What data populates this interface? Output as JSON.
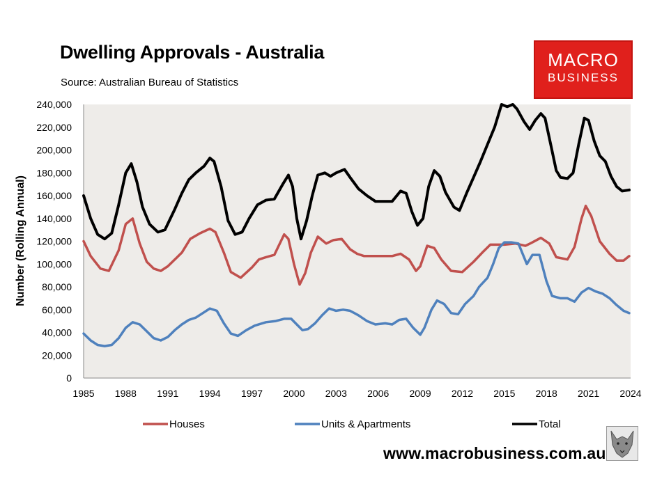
{
  "title": "Dwelling Approvals - Australia",
  "source": "Source: Australian Bureau of Statistics",
  "logo": {
    "line1": "MACRO",
    "line2": "BUSINESS",
    "bg_color": "#e0201c"
  },
  "footer_url": "www.macrobusiness.com.au",
  "chart_data": {
    "type": "line",
    "title": "Dwelling Approvals - Australia",
    "ylabel": "Number (Rolling Annual)",
    "xlabel": "",
    "xlim": [
      1985,
      2024
    ],
    "ylim": [
      0,
      240000
    ],
    "x_ticks": [
      1985,
      1988,
      1991,
      1994,
      1997,
      2000,
      2003,
      2006,
      2009,
      2012,
      2015,
      2018,
      2021,
      2024
    ],
    "x_tick_labels": [
      "1985",
      "1988",
      "1991",
      "1994",
      "1997",
      "2000",
      "2003",
      "2006",
      "2009",
      "2012",
      "2015",
      "2018",
      "2021",
      "2024"
    ],
    "y_ticks": [
      0,
      20000,
      40000,
      60000,
      80000,
      100000,
      120000,
      140000,
      160000,
      180000,
      200000,
      220000,
      240000
    ],
    "y_tick_labels": [
      "0",
      "20,000",
      "40,000",
      "60,000",
      "80,000",
      "100,000",
      "120,000",
      "140,000",
      "160,000",
      "180,000",
      "200,000",
      "220,000",
      "240,000"
    ],
    "grid": false,
    "legend_position": "bottom",
    "series": [
      {
        "name": "Houses",
        "color": "#c0504d",
        "points": [
          [
            1985.0,
            120000
          ],
          [
            1985.5,
            107000
          ],
          [
            1986.2,
            96000
          ],
          [
            1986.8,
            94000
          ],
          [
            1987.5,
            112000
          ],
          [
            1988.0,
            135000
          ],
          [
            1988.5,
            140000
          ],
          [
            1989.0,
            118000
          ],
          [
            1989.5,
            102000
          ],
          [
            1990.0,
            96000
          ],
          [
            1990.5,
            94000
          ],
          [
            1991.0,
            98000
          ],
          [
            1992.0,
            110000
          ],
          [
            1992.6,
            122000
          ],
          [
            1993.3,
            127000
          ],
          [
            1994.0,
            131000
          ],
          [
            1994.4,
            128000
          ],
          [
            1995.0,
            110000
          ],
          [
            1995.5,
            93000
          ],
          [
            1996.2,
            88000
          ],
          [
            1997.0,
            97000
          ],
          [
            1997.5,
            104000
          ],
          [
            1998.0,
            106000
          ],
          [
            1998.6,
            108000
          ],
          [
            1999.3,
            126000
          ],
          [
            1999.6,
            122000
          ],
          [
            2000.0,
            100000
          ],
          [
            2000.4,
            82000
          ],
          [
            2000.8,
            92000
          ],
          [
            2001.2,
            110000
          ],
          [
            2001.7,
            124000
          ],
          [
            2002.3,
            118000
          ],
          [
            2002.8,
            121000
          ],
          [
            2003.4,
            122000
          ],
          [
            2004.0,
            113000
          ],
          [
            2004.5,
            109000
          ],
          [
            2005.0,
            107000
          ],
          [
            2006.0,
            107000
          ],
          [
            2007.0,
            107000
          ],
          [
            2007.6,
            109000
          ],
          [
            2008.2,
            104000
          ],
          [
            2008.7,
            94000
          ],
          [
            2009.0,
            98000
          ],
          [
            2009.5,
            116000
          ],
          [
            2010.0,
            114000
          ],
          [
            2010.5,
            104000
          ],
          [
            2011.2,
            94000
          ],
          [
            2012.0,
            93000
          ],
          [
            2012.8,
            102000
          ],
          [
            2013.5,
            111000
          ],
          [
            2014.0,
            117000
          ],
          [
            2015.0,
            117000
          ],
          [
            2015.8,
            118000
          ],
          [
            2016.5,
            116000
          ],
          [
            2017.0,
            119000
          ],
          [
            2017.6,
            123000
          ],
          [
            2018.2,
            118000
          ],
          [
            2018.7,
            106000
          ],
          [
            2019.5,
            104000
          ],
          [
            2020.0,
            115000
          ],
          [
            2020.5,
            140000
          ],
          [
            2020.8,
            151000
          ],
          [
            2021.2,
            142000
          ],
          [
            2021.8,
            120000
          ],
          [
            2022.5,
            109000
          ],
          [
            2023.0,
            103000
          ],
          [
            2023.5,
            103000
          ],
          [
            2023.9,
            107000
          ]
        ]
      },
      {
        "name": "Units & Apartments",
        "color": "#4f81bd",
        "points": [
          [
            1985.0,
            39000
          ],
          [
            1985.5,
            33000
          ],
          [
            1986.0,
            29000
          ],
          [
            1986.5,
            28000
          ],
          [
            1987.0,
            29000
          ],
          [
            1987.5,
            35000
          ],
          [
            1988.0,
            44000
          ],
          [
            1988.5,
            49000
          ],
          [
            1989.0,
            47000
          ],
          [
            1989.5,
            41000
          ],
          [
            1990.0,
            35000
          ],
          [
            1990.5,
            33000
          ],
          [
            1991.0,
            36000
          ],
          [
            1991.5,
            42000
          ],
          [
            1992.0,
            47000
          ],
          [
            1992.5,
            51000
          ],
          [
            1993.0,
            53000
          ],
          [
            1993.5,
            57000
          ],
          [
            1994.0,
            61000
          ],
          [
            1994.5,
            59000
          ],
          [
            1995.0,
            48000
          ],
          [
            1995.5,
            39000
          ],
          [
            1996.0,
            37000
          ],
          [
            1996.6,
            42000
          ],
          [
            1997.2,
            46000
          ],
          [
            1998.0,
            49000
          ],
          [
            1998.7,
            50000
          ],
          [
            1999.3,
            52000
          ],
          [
            1999.8,
            52000
          ],
          [
            2000.2,
            47000
          ],
          [
            2000.6,
            42000
          ],
          [
            2001.0,
            43000
          ],
          [
            2001.5,
            48000
          ],
          [
            2002.0,
            55000
          ],
          [
            2002.5,
            61000
          ],
          [
            2003.0,
            59000
          ],
          [
            2003.5,
            60000
          ],
          [
            2004.0,
            59000
          ],
          [
            2004.6,
            55000
          ],
          [
            2005.2,
            50000
          ],
          [
            2005.8,
            47000
          ],
          [
            2006.5,
            48000
          ],
          [
            2007.0,
            47000
          ],
          [
            2007.5,
            51000
          ],
          [
            2008.0,
            52000
          ],
          [
            2008.5,
            44000
          ],
          [
            2009.0,
            38000
          ],
          [
            2009.3,
            44000
          ],
          [
            2009.8,
            60000
          ],
          [
            2010.2,
            68000
          ],
          [
            2010.7,
            65000
          ],
          [
            2011.2,
            57000
          ],
          [
            2011.7,
            56000
          ],
          [
            2012.2,
            65000
          ],
          [
            2012.8,
            72000
          ],
          [
            2013.2,
            80000
          ],
          [
            2013.8,
            88000
          ],
          [
            2014.2,
            100000
          ],
          [
            2014.6,
            114000
          ],
          [
            2015.0,
            119000
          ],
          [
            2015.5,
            119000
          ],
          [
            2016.0,
            118000
          ],
          [
            2016.6,
            100000
          ],
          [
            2017.0,
            108000
          ],
          [
            2017.5,
            108000
          ],
          [
            2018.0,
            85000
          ],
          [
            2018.4,
            72000
          ],
          [
            2019.0,
            70000
          ],
          [
            2019.5,
            70000
          ],
          [
            2020.0,
            67000
          ],
          [
            2020.5,
            75000
          ],
          [
            2021.0,
            79000
          ],
          [
            2021.5,
            76000
          ],
          [
            2022.0,
            74000
          ],
          [
            2022.5,
            70000
          ],
          [
            2023.0,
            64000
          ],
          [
            2023.5,
            59000
          ],
          [
            2023.9,
            57000
          ]
        ]
      },
      {
        "name": "Total",
        "color": "#000000",
        "points": [
          [
            1985.0,
            160000
          ],
          [
            1985.5,
            140000
          ],
          [
            1986.0,
            126000
          ],
          [
            1986.5,
            122000
          ],
          [
            1987.0,
            127000
          ],
          [
            1987.5,
            152000
          ],
          [
            1988.0,
            180000
          ],
          [
            1988.4,
            188000
          ],
          [
            1988.8,
            172000
          ],
          [
            1989.2,
            150000
          ],
          [
            1989.7,
            135000
          ],
          [
            1990.3,
            128000
          ],
          [
            1990.8,
            130000
          ],
          [
            1991.5,
            148000
          ],
          [
            1992.0,
            162000
          ],
          [
            1992.5,
            174000
          ],
          [
            1993.0,
            180000
          ],
          [
            1993.6,
            186000
          ],
          [
            1994.0,
            193000
          ],
          [
            1994.3,
            190000
          ],
          [
            1994.8,
            168000
          ],
          [
            1995.3,
            138000
          ],
          [
            1995.8,
            126000
          ],
          [
            1996.3,
            128000
          ],
          [
            1996.8,
            140000
          ],
          [
            1997.4,
            152000
          ],
          [
            1998.0,
            156000
          ],
          [
            1998.6,
            157000
          ],
          [
            1999.2,
            170000
          ],
          [
            1999.6,
            178000
          ],
          [
            1999.9,
            168000
          ],
          [
            2000.2,
            140000
          ],
          [
            2000.5,
            122000
          ],
          [
            2000.9,
            138000
          ],
          [
            2001.3,
            160000
          ],
          [
            2001.7,
            178000
          ],
          [
            2002.2,
            180000
          ],
          [
            2002.6,
            177000
          ],
          [
            2003.0,
            180000
          ],
          [
            2003.6,
            183000
          ],
          [
            2004.0,
            176000
          ],
          [
            2004.6,
            166000
          ],
          [
            2005.2,
            160000
          ],
          [
            2005.8,
            155000
          ],
          [
            2006.5,
            155000
          ],
          [
            2007.0,
            155000
          ],
          [
            2007.6,
            164000
          ],
          [
            2008.0,
            162000
          ],
          [
            2008.4,
            146000
          ],
          [
            2008.8,
            134000
          ],
          [
            2009.2,
            140000
          ],
          [
            2009.6,
            168000
          ],
          [
            2010.0,
            182000
          ],
          [
            2010.4,
            177000
          ],
          [
            2010.8,
            163000
          ],
          [
            2011.4,
            150000
          ],
          [
            2011.8,
            147000
          ],
          [
            2012.3,
            162000
          ],
          [
            2012.8,
            176000
          ],
          [
            2013.3,
            190000
          ],
          [
            2013.8,
            205000
          ],
          [
            2014.3,
            220000
          ],
          [
            2014.8,
            240000
          ],
          [
            2015.2,
            238000
          ],
          [
            2015.6,
            240000
          ],
          [
            2015.9,
            236000
          ],
          [
            2016.4,
            225000
          ],
          [
            2016.8,
            218000
          ],
          [
            2017.2,
            226000
          ],
          [
            2017.6,
            232000
          ],
          [
            2017.9,
            228000
          ],
          [
            2018.3,
            205000
          ],
          [
            2018.7,
            182000
          ],
          [
            2019.0,
            176000
          ],
          [
            2019.5,
            175000
          ],
          [
            2019.9,
            180000
          ],
          [
            2020.3,
            205000
          ],
          [
            2020.7,
            228000
          ],
          [
            2021.0,
            226000
          ],
          [
            2021.4,
            208000
          ],
          [
            2021.8,
            195000
          ],
          [
            2022.2,
            190000
          ],
          [
            2022.6,
            177000
          ],
          [
            2023.0,
            168000
          ],
          [
            2023.4,
            164000
          ],
          [
            2023.9,
            165000
          ]
        ]
      }
    ]
  }
}
